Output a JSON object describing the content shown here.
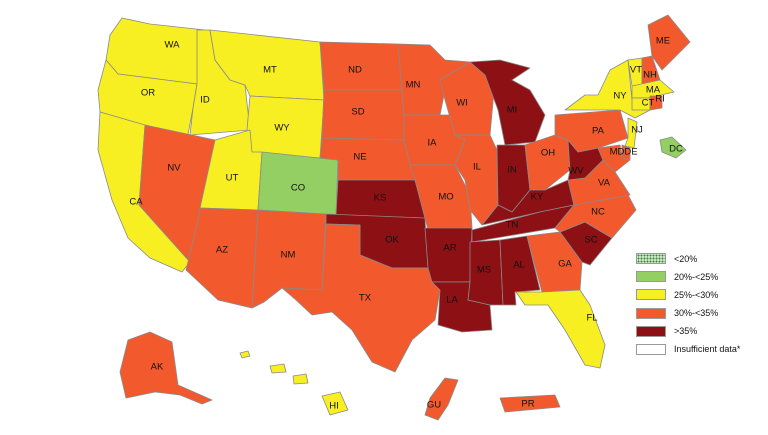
{
  "colors": {
    "lt20": "#cfe8c9",
    "c20_25": "#93cf62",
    "c25_30": "#f7ef22",
    "c30_35": "#f25a2e",
    "gt35": "#8c1014",
    "insufficient": "#ffffff"
  },
  "legend": [
    {
      "label": "<20%",
      "key": "lt20"
    },
    {
      "label": "20%-<25%",
      "key": "c20_25"
    },
    {
      "label": "25%-<30%",
      "key": "c25_30"
    },
    {
      "label": "30%-<35%",
      "key": "c30_35"
    },
    {
      "label": ">35%",
      "key": "gt35"
    },
    {
      "label": "Insufficient data*",
      "key": "insufficient"
    }
  ],
  "states": {
    "WA": "25%-<30%",
    "OR": "25%-<30%",
    "CA": "25%-<30%",
    "NV": "30%-<35%",
    "ID": "25%-<30%",
    "MT": "25%-<30%",
    "WY": "25%-<30%",
    "UT": "25%-<30%",
    "CO": "20%-<25%",
    "AZ": "30%-<35%",
    "NM": "30%-<35%",
    "ND": "30%-<35%",
    "SD": "30%-<35%",
    "NE": "30%-<35%",
    "KS": ">35%",
    "OK": ">35%",
    "TX": "30%-<35%",
    "MN": "30%-<35%",
    "IA": "30%-<35%",
    "MO": "30%-<35%",
    "AR": ">35%",
    "LA": ">35%",
    "WI": "30%-<35%",
    "IL": "30%-<35%",
    "MI": ">35%",
    "IN": ">35%",
    "OH": "30%-<35%",
    "KY": ">35%",
    "TN": ">35%",
    "MS": ">35%",
    "AL": ">35%",
    "GA": "30%-<35%",
    "FL": "25%-<30%",
    "SC": ">35%",
    "NC": "30%-<35%",
    "VA": "30%-<35%",
    "WV": ">35%",
    "PA": "30%-<35%",
    "NY": "25%-<30%",
    "VT": "25%-<30%",
    "NH": "30%-<35%",
    "ME": "30%-<35%",
    "MA": "25%-<30%",
    "CT": "25%-<30%",
    "RI": "30%-<35%",
    "NJ": "25%-<30%",
    "DE": "30%-<35%",
    "MD": "30%-<35%",
    "DC": "20%-<25%",
    "AK": "30%-<35%",
    "HI": "25%-<30%",
    "GU": "30%-<35%",
    "PR": "30%-<35%"
  },
  "labels": {
    "WA": "WA",
    "OR": "OR",
    "CA": "CA",
    "NV": "NV",
    "ID": "ID",
    "MT": "MT",
    "WY": "WY",
    "UT": "UT",
    "CO": "CO",
    "AZ": "AZ",
    "NM": "NM",
    "ND": "ND",
    "SD": "SD",
    "NE": "NE",
    "KS": "KS",
    "OK": "OK",
    "TX": "TX",
    "MN": "MN",
    "IA": "IA",
    "MO": "MO",
    "AR": "AR",
    "LA": "LA",
    "WI": "WI",
    "IL": "IL",
    "MI": "MI",
    "IN": "IN",
    "OH": "OH",
    "KY": "KY",
    "TN": "TN",
    "MS": "MS",
    "AL": "AL",
    "GA": "GA",
    "FL": "FL",
    "SC": "SC",
    "NC": "NC",
    "VA": "VA",
    "WV": "WV",
    "PA": "PA",
    "NY": "NY",
    "VT": "VT",
    "NH": "NH",
    "ME": "ME",
    "MA": "MA",
    "CT": "CT",
    "RI": "RI",
    "NJ": "NJ",
    "DE": "DE",
    "MD": "MD",
    "DC": "DC",
    "AK": "AK",
    "HI": "HI",
    "GU": "GU",
    "PR": "PR"
  }
}
